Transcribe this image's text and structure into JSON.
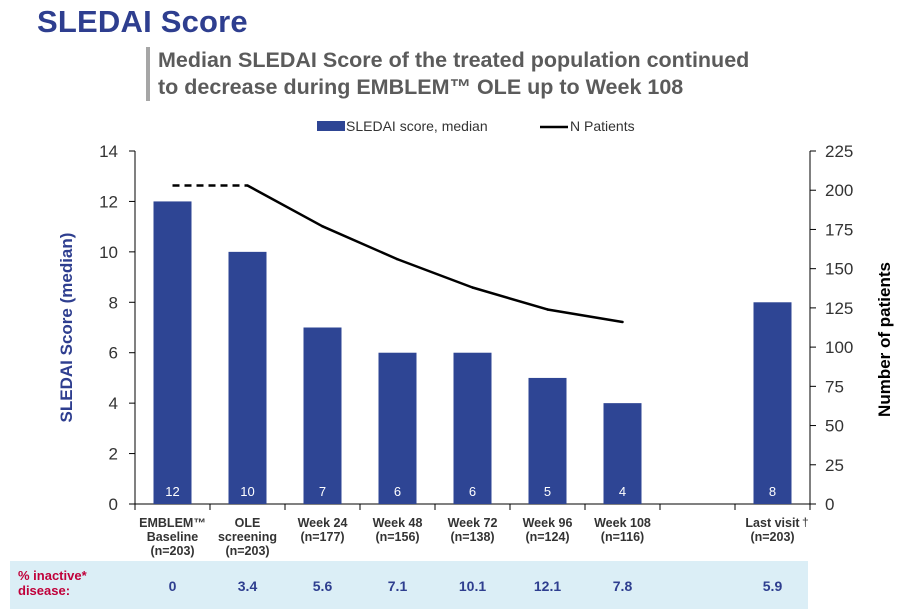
{
  "page": {
    "title": "SLEDAI Score",
    "subtitle_line1": "Median SLEDAI Score of the treated population continued",
    "subtitle_line2": "to decrease during EMBLEM™ OLE up to Week 108"
  },
  "chart_data": {
    "type": "bar",
    "categories": [
      [
        "EMBLEM™",
        "Baseline",
        "(n=203)"
      ],
      [
        "OLE",
        "screening",
        "(n=203)"
      ],
      [
        "Week 24",
        "(n=177)"
      ],
      [
        "Week 48",
        "(n=156)"
      ],
      [
        "Week 72",
        "(n=138)"
      ],
      [
        "Week 96",
        "(n=124)"
      ],
      [
        "Week 108",
        "(n=116)"
      ],
      [],
      [
        "Last visit",
        "(n=203)"
      ]
    ],
    "dagger": "†",
    "series": [
      {
        "name": "SLEDAI score, median",
        "type": "bar",
        "axis": "left",
        "color": "#2e4594",
        "values": [
          12,
          10,
          7,
          6,
          6,
          5,
          4,
          null,
          8
        ],
        "labels": [
          "12",
          "10",
          "7",
          "6",
          "6",
          "5",
          "4",
          "",
          "8"
        ]
      },
      {
        "name": "N Patients",
        "type": "line",
        "axis": "right",
        "color": "#000000",
        "values": [
          203,
          203,
          177,
          156,
          138,
          124,
          116,
          null,
          null
        ],
        "dashed_segments": [
          [
            0,
            1
          ]
        ]
      }
    ],
    "ylabel": "SLEDAI Score (median)",
    "y2label": "Number of patients",
    "ylim": [
      0,
      14
    ],
    "yticks": [
      "0",
      "2",
      "4",
      "6",
      "8",
      "10",
      "12",
      "14"
    ],
    "y2lim": [
      0,
      225
    ],
    "y2ticks": [
      "0",
      "25",
      "50",
      "75",
      "100",
      "125",
      "150",
      "175",
      "200",
      "225"
    ],
    "legend": "top-center",
    "grid": false
  },
  "footer": {
    "label": "% inactive* disease:",
    "values": [
      "0",
      "3.4",
      "5.6",
      "7.1",
      "10.1",
      "12.1",
      "7.8",
      "",
      "5.9"
    ]
  }
}
